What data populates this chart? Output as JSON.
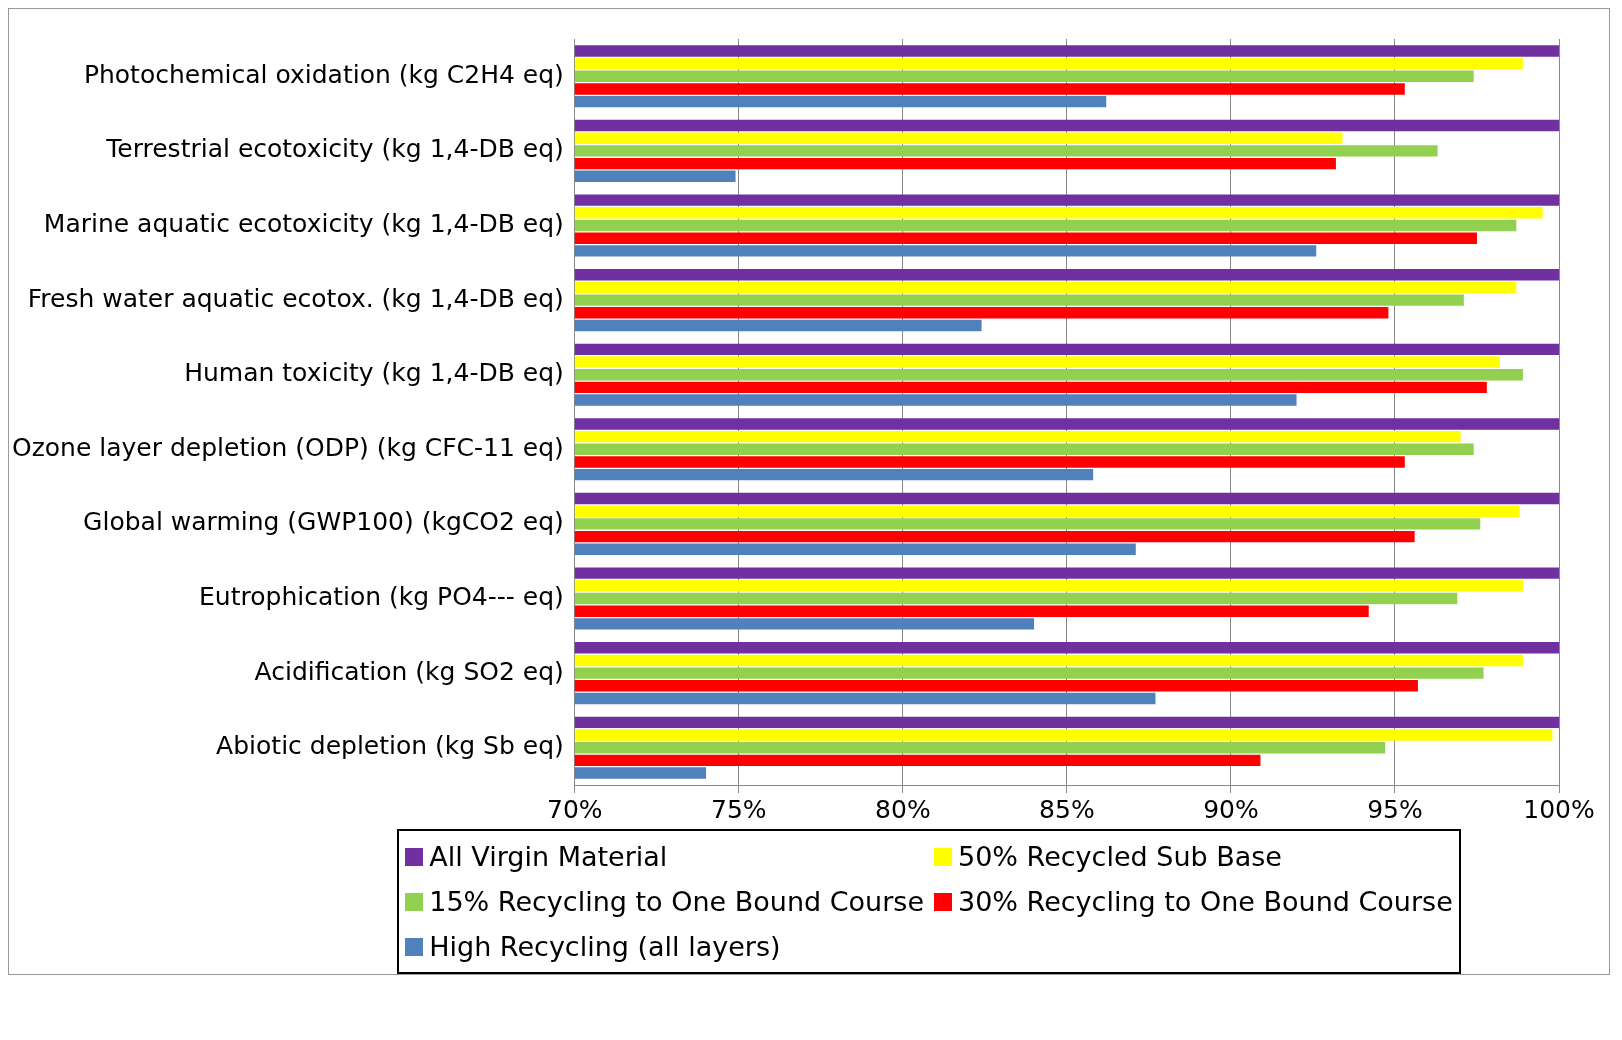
{
  "chart_data": {
    "type": "bar",
    "orientation": "horizontal",
    "categories": [
      "Photochemical oxidation (kg C2H4 eq)",
      "Terrestrial ecotoxicity (kg 1,4-DB eq)",
      "Marine aquatic ecotoxicity (kg 1,4-DB eq)",
      "Fresh water aquatic ecotox. (kg 1,4-DB eq)",
      "Human toxicity (kg 1,4-DB eq)",
      "Ozone layer depletion (ODP) (kg CFC-11 eq)",
      "Global warming (GWP100) (kgCO2 eq)",
      "Eutrophication (kg PO4--- eq)",
      "Acidification (kg SO2 eq)",
      "Abiotic depletion (kg Sb eq)"
    ],
    "series": [
      {
        "name": "All Virgin Material",
        "color": "#7030a0",
        "values": [
          100,
          100,
          100,
          100,
          100,
          100,
          100,
          100,
          100,
          100
        ]
      },
      {
        "name": "50% Recycled Sub Base",
        "color": "#ffff00",
        "values": [
          98.9,
          93.4,
          99.5,
          98.7,
          98.2,
          97.0,
          98.8,
          98.9,
          98.9,
          99.8
        ]
      },
      {
        "name": "15% Recycling to One Bound Course",
        "color": "#92d050",
        "values": [
          97.4,
          96.3,
          98.7,
          97.1,
          98.9,
          97.4,
          97.6,
          96.9,
          97.7,
          94.7
        ]
      },
      {
        "name": "30% Recycling to One Bound Course",
        "color": "#ff0000",
        "values": [
          95.3,
          93.2,
          97.5,
          94.8,
          97.8,
          95.3,
          95.6,
          94.2,
          95.7,
          90.9
        ]
      },
      {
        "name": "High Recycling (all layers)",
        "color": "#4f81bd",
        "values": [
          86.2,
          74.9,
          92.6,
          82.4,
          92.0,
          85.8,
          87.1,
          84.0,
          87.7,
          74.0
        ]
      }
    ],
    "xlim": [
      70,
      100
    ],
    "xticks": [
      {
        "value": 70,
        "label": "70%"
      },
      {
        "value": 75,
        "label": "75%"
      },
      {
        "value": 80,
        "label": "80%"
      },
      {
        "value": 85,
        "label": "85%"
      },
      {
        "value": 90,
        "label": "90%"
      },
      {
        "value": 95,
        "label": "95%"
      },
      {
        "value": 100,
        "label": "100%"
      }
    ],
    "grid": "x",
    "legend": "bottom"
  }
}
